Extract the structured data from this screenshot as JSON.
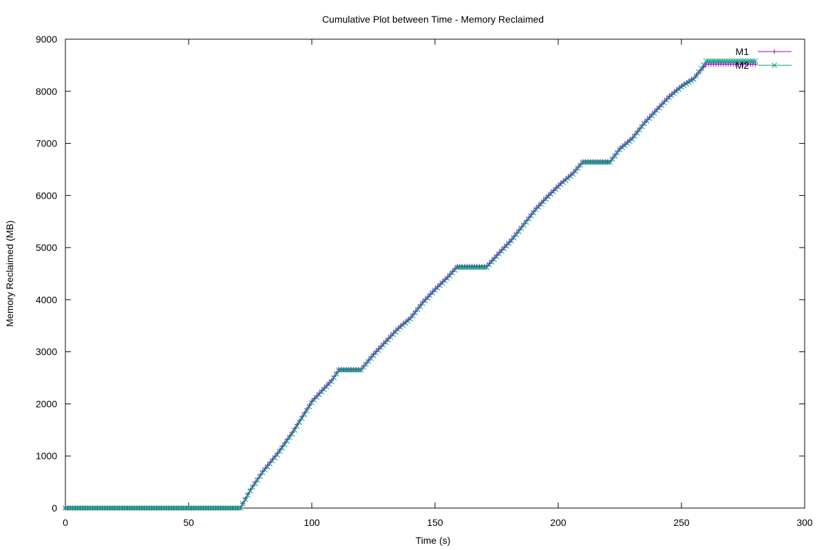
{
  "chart_data": {
    "type": "line",
    "title": "Cumulative Plot between Time - Memory Reclaimed",
    "xlabel": "Time (s)",
    "ylabel": "Memory Reclaimed (MB)",
    "xlim": [
      0,
      300
    ],
    "ylim": [
      0,
      9000
    ],
    "x_ticks": [
      0,
      50,
      100,
      150,
      200,
      250,
      300
    ],
    "y_ticks": [
      0,
      1000,
      2000,
      3000,
      4000,
      5000,
      6000,
      7000,
      8000,
      9000
    ],
    "grid": false,
    "legend_position": "top-right",
    "sample_step": 1,
    "series": [
      {
        "name": "M1",
        "color": "#9400d3",
        "marker": "plus",
        "x": [
          0,
          71,
          75,
          80,
          86,
          92,
          96,
          100,
          104,
          108,
          111,
          120,
          125,
          130,
          135,
          140,
          145,
          150,
          155,
          159,
          171,
          176,
          181,
          186,
          191,
          196,
          201,
          206,
          210,
          221,
          225,
          230,
          235,
          240,
          245,
          250,
          255,
          260,
          280
        ],
        "y": [
          0,
          0,
          350,
          700,
          1050,
          1450,
          1750,
          2050,
          2250,
          2450,
          2660,
          2660,
          2950,
          3200,
          3450,
          3650,
          3950,
          4200,
          4430,
          4640,
          4640,
          4900,
          5150,
          5450,
          5750,
          6000,
          6230,
          6430,
          6650,
          6650,
          6900,
          7100,
          7400,
          7650,
          7900,
          8100,
          8250,
          8520,
          8520
        ]
      },
      {
        "name": "M2",
        "color": "#009e73",
        "marker": "cross",
        "x": [
          0,
          71,
          75,
          80,
          86,
          92,
          96,
          100,
          104,
          108,
          111,
          120,
          125,
          130,
          135,
          140,
          145,
          150,
          155,
          159,
          171,
          176,
          181,
          186,
          191,
          196,
          201,
          206,
          210,
          221,
          225,
          230,
          235,
          240,
          245,
          250,
          255,
          260,
          280
        ],
        "y": [
          0,
          0,
          330,
          680,
          1020,
          1420,
          1720,
          2020,
          2230,
          2430,
          2650,
          2650,
          2930,
          3180,
          3430,
          3630,
          3930,
          4180,
          4410,
          4620,
          4620,
          4880,
          5130,
          5430,
          5730,
          5980,
          6210,
          6410,
          6640,
          6640,
          6880,
          7080,
          7380,
          7630,
          7880,
          8080,
          8230,
          8580,
          8580
        ]
      }
    ]
  }
}
